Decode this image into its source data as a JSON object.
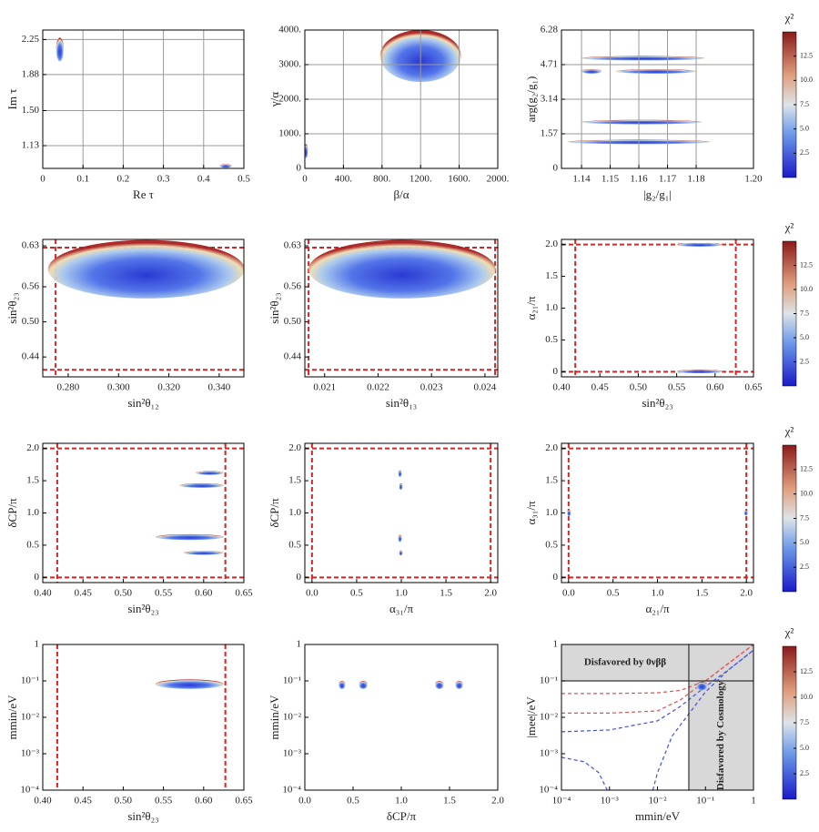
{
  "chart_data": [
    {
      "type": "scatter",
      "xlabel": "Re τ",
      "ylabel": "Im τ",
      "grid": true,
      "xlim": [
        0,
        0.5
      ],
      "xticks": [
        0,
        0.1,
        0.2,
        0.3,
        0.4,
        0.5
      ],
      "ylim": [
        0.89,
        2.35
      ],
      "yticks": [
        1.13,
        {
          "value": 1.5,
          "label": "1.50"
        },
        1.88,
        2.25
      ],
      "clusters": [
        {
          "x": [
            0.033,
            0.052
          ],
          "y": [
            2.02,
            2.27
          ]
        },
        {
          "x": [
            0.44,
            0.47
          ],
          "y": [
            0.9,
            0.93
          ]
        }
      ]
    },
    {
      "type": "scatter",
      "xlabel": "β/α",
      "ylabel": "γ/α",
      "grid": true,
      "xlim": [
        0,
        2000
      ],
      "xticks": [
        0,
        {
          "value": 400,
          "label": "400."
        },
        {
          "value": 800,
          "label": "800."
        },
        {
          "value": 1200,
          "label": "1200."
        },
        {
          "value": 1600,
          "label": "1600."
        },
        {
          "value": 2000,
          "label": "2000."
        }
      ],
      "ylim": [
        0,
        4000
      ],
      "yticks": [
        0,
        {
          "value": 1000,
          "label": "1000."
        },
        {
          "value": 2000,
          "label": "2000."
        },
        {
          "value": 3000,
          "label": "3000."
        },
        {
          "value": 4000,
          "label": "4000."
        }
      ],
      "clusters": [
        {
          "x": [
            780,
            1620
          ],
          "y": [
            2500,
            4000
          ]
        },
        {
          "x": [
            0,
            25
          ],
          "y": [
            300,
            700
          ]
        }
      ]
    },
    {
      "type": "scatter",
      "xlabel": "|g₂/g₁|",
      "ylabel": "arg(g₂/g₁)",
      "grid": true,
      "xlim": [
        1.133,
        1.2
      ],
      "xticks": [
        1.14,
        1.15,
        1.16,
        1.17,
        1.18,
        {
          "value": 1.2,
          "label": "1.20"
        }
      ],
      "ylim": [
        0,
        6.28
      ],
      "yticks": [
        0,
        1.57,
        3.14,
        4.71,
        6.28
      ],
      "clusters": [
        {
          "x": [
            1.14,
            1.183
          ],
          "y": [
            4.9,
            5.1
          ]
        },
        {
          "x": [
            1.14,
            1.147
          ],
          "y": [
            4.3,
            4.5
          ]
        },
        {
          "x": [
            1.152,
            1.18
          ],
          "y": [
            4.3,
            4.5
          ]
        },
        {
          "x": [
            1.14,
            1.182
          ],
          "y": [
            2.0,
            2.2
          ]
        },
        {
          "x": [
            1.135,
            1.185
          ],
          "y": [
            1.1,
            1.3
          ]
        }
      ],
      "colorbar": {
        "label": "χ²",
        "lim": [
          0,
          15
        ],
        "ticks": [
          2.5,
          {
            "value": 5,
            "label": "5.0"
          },
          7.5,
          {
            "value": 10,
            "label": "10.0"
          },
          12.5
        ]
      }
    },
    {
      "type": "scatter",
      "xlabel": "sin²θ₁₂",
      "ylabel": "sin²θ₂₃",
      "grid": false,
      "xlim": [
        0.2699,
        0.3498
      ],
      "xticks": [
        {
          "value": 0.28,
          "label": "0.280"
        },
        {
          "value": 0.3,
          "label": "0.300"
        },
        {
          "value": 0.32,
          "label": "0.320"
        },
        {
          "value": 0.34,
          "label": "0.340"
        }
      ],
      "ylim": [
        0.406,
        0.641
      ],
      "yticks": [
        0.44,
        {
          "value": 0.5,
          "label": "0.50"
        },
        0.56,
        0.63
      ],
      "vlines": [
        0.275,
        0.35
      ],
      "hlines": [
        0.418,
        0.627
      ],
      "clusters": [
        {
          "x": [
            0.272,
            0.35
          ],
          "y": [
            0.54,
            0.64
          ]
        }
      ]
    },
    {
      "type": "scatter",
      "xlabel": "sin²θ₁₃",
      "ylabel": "sin²θ₂₃",
      "grid": false,
      "xlim": [
        0.02063,
        0.02424
      ],
      "xticks": [
        0.021,
        0.022,
        0.023,
        0.024
      ],
      "ylim": [
        0.406,
        0.641
      ],
      "yticks": [
        0.44,
        {
          "value": 0.5,
          "label": "0.50"
        },
        0.56,
        0.63
      ],
      "vlines": [
        0.0207,
        0.02419
      ],
      "hlines": [
        0.418,
        0.627
      ],
      "clusters": [
        {
          "x": [
            0.0207,
            0.0242
          ],
          "y": [
            0.54,
            0.64
          ]
        }
      ]
    },
    {
      "type": "scatter",
      "xlabel": "sin²θ₂₃",
      "ylabel": "α₂₁/π",
      "grid": false,
      "xlim": [
        0.4,
        0.65
      ],
      "xticks": [
        {
          "value": 0.4,
          "label": "0.40"
        },
        0.45,
        {
          "value": 0.5,
          "label": "0.50"
        },
        0.55,
        {
          "value": 0.6,
          "label": "0.60"
        },
        0.65
      ],
      "ylim": [
        -0.08,
        2.08
      ],
      "yticks": [
        0,
        0.5,
        {
          "value": 1,
          "label": "1.0"
        },
        1.5,
        {
          "value": 2,
          "label": "2.0"
        }
      ],
      "vlines": [
        0.418,
        0.627
      ],
      "hlines": [
        0,
        2
      ],
      "clusters": [
        {
          "x": [
            0.55,
            0.61
          ],
          "y": [
            1.97,
            2.02
          ]
        },
        {
          "x": [
            0.55,
            0.61
          ],
          "y": [
            -0.02,
            0.03
          ]
        }
      ],
      "colorbar": {
        "label": "χ²",
        "lim": [
          0,
          15
        ],
        "ticks": [
          2.5,
          {
            "value": 5,
            "label": "5.0"
          },
          7.5,
          {
            "value": 10,
            "label": "10.0"
          },
          12.5
        ]
      }
    },
    {
      "type": "scatter",
      "xlabel": "sin²θ₂₃",
      "ylabel": "δCP/π",
      "grid": false,
      "xlim": [
        0.4,
        0.65
      ],
      "xticks": [
        {
          "value": 0.4,
          "label": "0.40"
        },
        0.45,
        {
          "value": 0.5,
          "label": "0.50"
        },
        0.55,
        {
          "value": 0.6,
          "label": "0.60"
        },
        0.65
      ],
      "ylim": [
        -0.08,
        2.08
      ],
      "yticks": [
        0,
        0.5,
        {
          "value": 1,
          "label": "1.0"
        },
        1.5,
        {
          "value": 2,
          "label": "2.0"
        }
      ],
      "vlines": [
        0.418,
        0.627
      ],
      "hlines": [
        0,
        2
      ],
      "clusters": [
        {
          "x": [
            0.59,
            0.625
          ],
          "y": [
            1.59,
            1.65
          ]
        },
        {
          "x": [
            0.57,
            0.625
          ],
          "y": [
            1.39,
            1.46
          ]
        },
        {
          "x": [
            0.54,
            0.625
          ],
          "y": [
            0.58,
            0.67
          ]
        },
        {
          "x": [
            0.575,
            0.625
          ],
          "y": [
            0.35,
            0.41
          ]
        }
      ]
    },
    {
      "type": "scatter",
      "xlabel": "α₃₁/π",
      "ylabel": "δCP/π",
      "grid": false,
      "xlim": [
        -0.08,
        2.08
      ],
      "xticks": [
        {
          "value": 0,
          "label": "0.0"
        },
        0.5,
        {
          "value": 1,
          "label": "1.0"
        },
        1.5,
        {
          "value": 2,
          "label": "2.0"
        }
      ],
      "ylim": [
        -0.08,
        2.08
      ],
      "yticks": [
        0,
        0.5,
        {
          "value": 1,
          "label": "1.0"
        },
        1.5,
        {
          "value": 2,
          "label": "2.0"
        }
      ],
      "vlines": [
        0,
        2
      ],
      "hlines": [
        0,
        2
      ],
      "clusters": [
        {
          "x": [
            0.97,
            1.0
          ],
          "y": [
            1.56,
            1.66
          ]
        },
        {
          "x": [
            0.98,
            1.01
          ],
          "y": [
            1.36,
            1.46
          ]
        },
        {
          "x": [
            0.97,
            1.0
          ],
          "y": [
            0.55,
            0.66
          ]
        },
        {
          "x": [
            0.98,
            1.01
          ],
          "y": [
            0.34,
            0.42
          ]
        }
      ]
    },
    {
      "type": "scatter",
      "xlabel": "α₂₁/π",
      "ylabel": "α₃₁/π",
      "grid": false,
      "xlim": [
        -0.08,
        2.08
      ],
      "xticks": [
        {
          "value": 0,
          "label": "0.0"
        },
        0.5,
        {
          "value": 1,
          "label": "1.0"
        },
        1.5,
        {
          "value": 2,
          "label": "2.0"
        }
      ],
      "ylim": [
        -0.08,
        2.08
      ],
      "yticks": [
        0,
        0.5,
        {
          "value": 1,
          "label": "1.0"
        },
        1.5,
        {
          "value": 2,
          "label": "2.0"
        }
      ],
      "vlines": [
        0,
        2
      ],
      "hlines": [
        0,
        2
      ],
      "clusters": [
        {
          "x": [
            -0.01,
            0.02
          ],
          "y": [
            0.95,
            1.05
          ]
        },
        {
          "x": [
            1.98,
            2.01
          ],
          "y": [
            0.96,
            1.04
          ]
        }
      ],
      "colorbar": {
        "label": "χ²",
        "lim": [
          0,
          15
        ],
        "ticks": [
          2.5,
          {
            "value": 5,
            "label": "5.0"
          },
          7.5,
          {
            "value": 10,
            "label": "10.0"
          },
          12.5
        ]
      }
    },
    {
      "type": "scatter",
      "xlabel": "sin²θ₂₃",
      "ylabel": "mmin/eV",
      "grid": false,
      "ylog": true,
      "xlim": [
        0.4,
        0.65
      ],
      "xticks": [
        {
          "value": 0.4,
          "label": "0.40"
        },
        0.45,
        {
          "value": 0.5,
          "label": "0.50"
        },
        0.55,
        {
          "value": 0.6,
          "label": "0.60"
        },
        0.65
      ],
      "ylim": [
        0.0001,
        1
      ],
      "yticks": [
        {
          "value": 0.0001,
          "label": "10⁻⁴"
        },
        {
          "value": 0.001,
          "label": "10⁻³"
        },
        {
          "value": 0.01,
          "label": "10⁻²"
        },
        {
          "value": 0.1,
          "label": "10⁻¹"
        },
        1
      ],
      "vlines": [
        0.418,
        0.627
      ],
      "clusters": [
        {
          "x": [
            0.54,
            0.625
          ],
          "y": [
            0.06,
            0.11
          ]
        }
      ]
    },
    {
      "type": "scatter",
      "xlabel": "δCP/π",
      "ylabel": "mmin/eV",
      "grid": false,
      "ylog": true,
      "xlim": [
        0,
        2
      ],
      "xticks": [
        {
          "value": 0,
          "label": "0.0"
        },
        0.5,
        {
          "value": 1,
          "label": "1.0"
        },
        1.5,
        {
          "value": 2,
          "label": "2.0"
        }
      ],
      "ylim": [
        0.0001,
        1
      ],
      "yticks": [
        {
          "value": 0.0001,
          "label": "10⁻⁴"
        },
        {
          "value": 0.001,
          "label": "10⁻³"
        },
        {
          "value": 0.01,
          "label": "10⁻²"
        },
        {
          "value": 0.1,
          "label": "10⁻¹"
        },
        1
      ],
      "clusters": [
        {
          "x": [
            0.35,
            0.42
          ],
          "y": [
            0.06,
            0.1
          ]
        },
        {
          "x": [
            0.56,
            0.65
          ],
          "y": [
            0.06,
            0.1
          ]
        },
        {
          "x": [
            1.35,
            1.44
          ],
          "y": [
            0.06,
            0.1
          ]
        },
        {
          "x": [
            1.56,
            1.64
          ],
          "y": [
            0.06,
            0.1
          ]
        }
      ]
    },
    {
      "type": "scatter",
      "xlabel": "mmin/eV",
      "ylabel": "|mee|/eV",
      "grid": false,
      "xlog": true,
      "ylog": true,
      "shade_beyond": true,
      "xlim": [
        0.0001,
        1
      ],
      "xticks": [
        {
          "value": 0.0001,
          "label": "10⁻⁴"
        },
        {
          "value": 0.001,
          "label": "10⁻³"
        },
        {
          "value": 0.01,
          "label": "10⁻²"
        },
        {
          "value": 0.1,
          "label": "10⁻¹"
        },
        1
      ],
      "ylim": [
        0.0001,
        1
      ],
      "yticks": [
        {
          "value": 0.0001,
          "label": "10⁻⁴"
        },
        {
          "value": 0.001,
          "label": "10⁻³"
        },
        {
          "value": 0.01,
          "label": "10⁻²"
        },
        {
          "value": 0.1,
          "label": "10⁻¹"
        },
        1
      ],
      "vlines": [
        0.045
      ],
      "hlines": [
        0.1
      ],
      "annotations": [
        "Disfavored by 0νββ",
        "Disfavored by Cosmology"
      ],
      "curves": [
        {
          "color": "#e05050",
          "x": [
            0.0001,
            0.001,
            0.01,
            0.03,
            0.1,
            0.3,
            1
          ],
          "values": [
            0.045,
            0.045,
            0.047,
            0.055,
            0.1,
            0.3,
            1
          ]
        },
        {
          "color": "#e05050",
          "x": [
            0.0001,
            0.001,
            0.01,
            0.03,
            0.1,
            0.3,
            1
          ],
          "values": [
            0.013,
            0.013,
            0.015,
            0.03,
            0.1,
            0.3,
            1
          ]
        },
        {
          "color": "#4050e0",
          "x": [
            0.0001,
            0.001,
            0.01,
            0.03,
            0.1,
            0.3,
            1
          ],
          "values": [
            0.004,
            0.0045,
            0.008,
            0.02,
            0.07,
            0.2,
            0.7
          ]
        },
        {
          "color": "#4050e0",
          "x": [
            0.0001,
            0.0003,
            0.0006,
            0.0009,
            null,
            0.008,
            0.01,
            0.02,
            0.05,
            0.1,
            0.3,
            1
          ],
          "values": [
            0.0008,
            0.0006,
            0.0003,
            0.0001,
            null,
            0.0001,
            0.0003,
            0.003,
            0.015,
            0.05,
            0.2,
            0.7
          ]
        }
      ],
      "clusters": [
        {
          "x": [
            0.065,
            0.11
          ],
          "y": [
            0.055,
            0.095
          ]
        }
      ],
      "colorbar": {
        "label": "χ²",
        "lim": [
          0,
          15
        ],
        "ticks": [
          2.5,
          {
            "value": 5,
            "label": "5.0"
          },
          7.5,
          {
            "value": 10,
            "label": "10.0"
          },
          12.5
        ]
      }
    }
  ]
}
